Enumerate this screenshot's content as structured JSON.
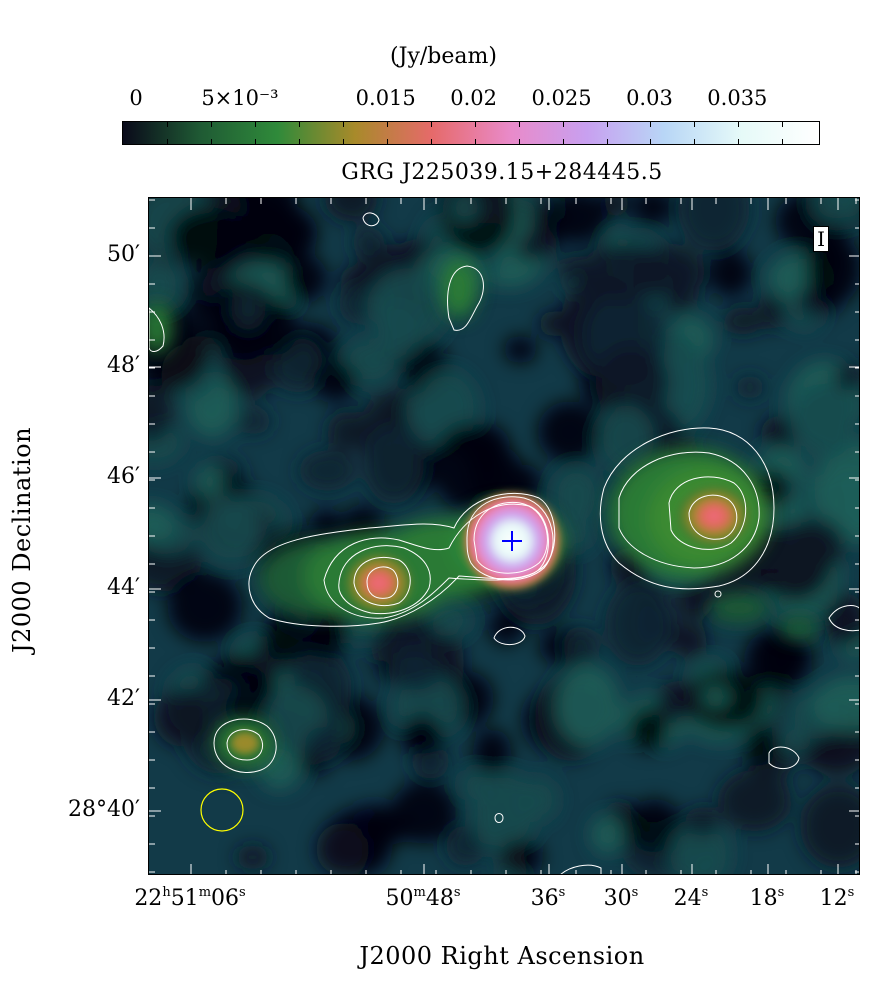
{
  "colorbar": {
    "unit": "(Jy/beam)",
    "tick_labels": [
      {
        "text": "0",
        "value": 0
      },
      {
        "text": "5×10⁻³",
        "value": 0.005
      },
      {
        "text": "0.015",
        "value": 0.015
      },
      {
        "text": "0.02",
        "value": 0.02
      },
      {
        "text": "0.025",
        "value": 0.025
      },
      {
        "text": "0.03",
        "value": 0.03
      },
      {
        "text": "0.035",
        "value": 0.035
      }
    ],
    "range": [
      0,
      0.0397
    ],
    "colors": [
      "#0a0a1a",
      "#1f5a34",
      "#2f8a3a",
      "#a88a2a",
      "#e66a6a",
      "#e98ac9",
      "#c8a0f0",
      "#b8d6f6",
      "#e6faf8",
      "#ffffff"
    ]
  },
  "title": "GRG J225039.15+284445.5",
  "stokes": "I",
  "axes": {
    "xlabel": "J2000 Right Ascension",
    "ylabel": "J2000 Declination",
    "y_tick_labels": [
      "50′",
      "48′",
      "46′",
      "44′",
      "42′",
      "28°40′"
    ],
    "x_tick_labels": [
      {
        "main": "22",
        "s1": "h",
        "m": "51",
        "s2": "m",
        "s": "06",
        "s3": "s"
      },
      {
        "m": "50",
        "s2": "m",
        "s": "48",
        "s3": "s"
      },
      {
        "s": "36",
        "s3": "s"
      },
      {
        "s": "30",
        "s3": "s"
      },
      {
        "s": "24",
        "s3": "s"
      },
      {
        "s": "18",
        "s3": "s"
      },
      {
        "s": "12",
        "s3": "s"
      }
    ]
  },
  "chart_data": {
    "type": "heatmap",
    "title": "GRG J225039.15+284445.5",
    "xlabel": "J2000 Right Ascension",
    "ylabel": "J2000 Declination",
    "colorbar_label": "(Jy/beam)",
    "colorbar_range": [
      0,
      0.0397
    ],
    "x_ticks": [
      "22h51m06s",
      "50m48s",
      "36s",
      "30s",
      "24s",
      "18s",
      "12s"
    ],
    "y_ticks": [
      "50′",
      "48′",
      "46′",
      "44′",
      "42′",
      "28°40′"
    ],
    "sources": [
      {
        "name": "core",
        "ra": "22h50m39.15s",
        "dec": "+28°44′45.5″",
        "peak_jy_beam": 0.039
      },
      {
        "name": "east lobe",
        "peak_jy_beam": 0.013
      },
      {
        "name": "west lobe",
        "peak_jy_beam": 0.011
      },
      {
        "name": "south-east compact source",
        "peak_jy_beam": 0.006
      }
    ],
    "markers": [
      {
        "type": "cross",
        "color": "#0000ff",
        "label": "host"
      }
    ],
    "beam": {
      "color": "#ffff00"
    },
    "contour_color": "#ffffff"
  }
}
